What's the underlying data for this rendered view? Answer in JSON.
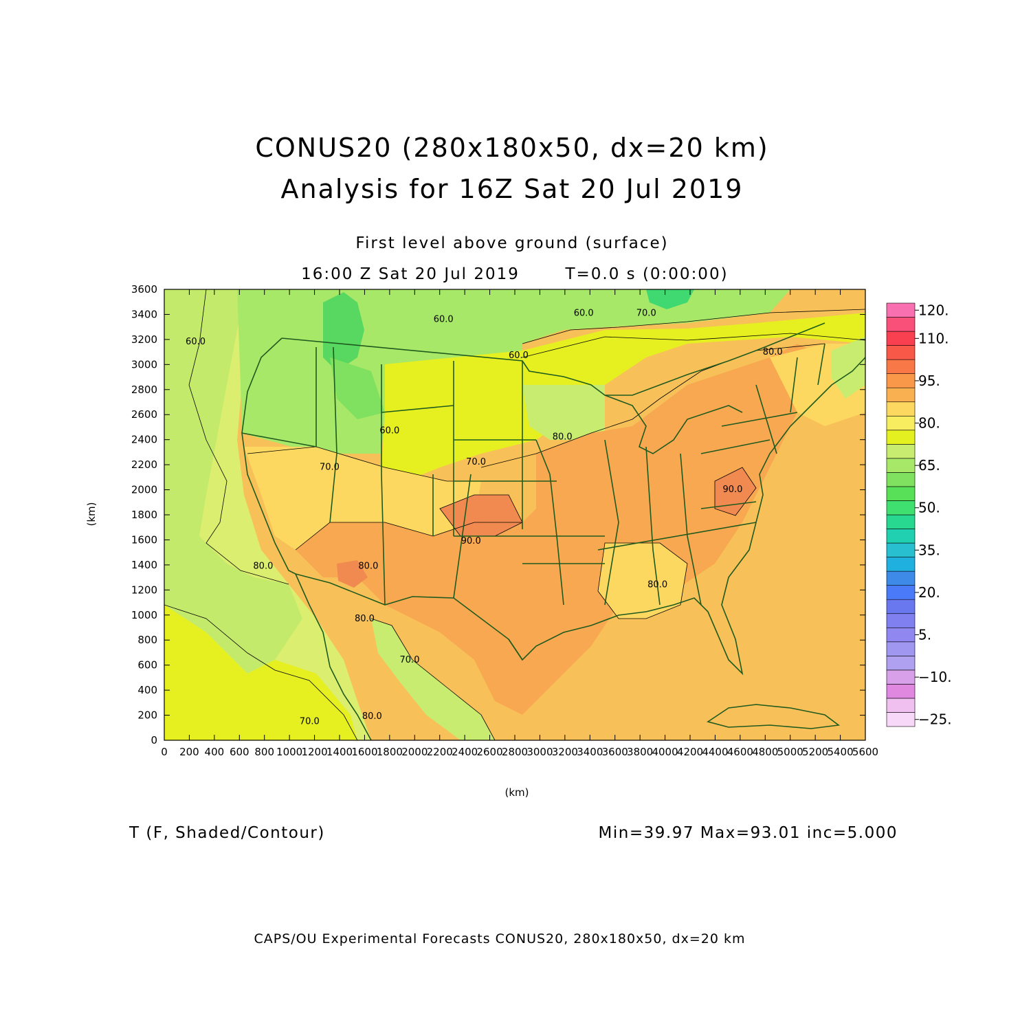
{
  "title": "CONUS20 (280x180x50, dx=20 km)",
  "subtitle": "Analysis for 16Z Sat 20 Jul 2019",
  "level_label": "First level above ground (surface)",
  "time_label": "16:00 Z Sat 20 Jul 2019",
  "valid_label": "T=0.0 s (0:00:00)",
  "field_label": "T (F, Shaded/Contour)",
  "stats_label": "Min=39.97  Max=93.01  inc=5.000",
  "credit_label": "CAPS/OU Experimental Forecasts  CONUS20, 280x180x50, dx=20 km",
  "chart_data": {
    "type": "heatmap",
    "title": "CONUS20 (280x180x50, dx=20 km)",
    "subtitle": "Analysis for 16Z Sat 20 Jul 2019",
    "xlabel": "(km)",
    "ylabel": "(km)",
    "xlim": [
      0,
      5600
    ],
    "ylim": [
      0,
      3600
    ],
    "x_ticks": [
      "0",
      "200",
      "400",
      "600",
      "800",
      "1000",
      "1200",
      "1400",
      "1600",
      "1800",
      "2000",
      "2200",
      "2400",
      "2600",
      "2800",
      "3000",
      "3200",
      "3400",
      "3600",
      "3800",
      "4000",
      "4200",
      "4400",
      "4600",
      "4800",
      "5000",
      "5200",
      "5400",
      "5600"
    ],
    "y_ticks": [
      "0",
      "200",
      "400",
      "600",
      "800",
      "1000",
      "1200",
      "1400",
      "1600",
      "1800",
      "2000",
      "2200",
      "2400",
      "2600",
      "2800",
      "3000",
      "3200",
      "3400",
      "3600"
    ],
    "field": "T (F, Shaded/Contour)",
    "min": 39.97,
    "max": 93.01,
    "inc": 5.0,
    "colorbar": {
      "levels": [
        -25,
        -20,
        -15,
        -10,
        -5,
        0,
        5,
        10,
        15,
        20,
        25,
        30,
        35,
        40,
        45,
        50,
        55,
        60,
        65,
        70,
        75,
        80,
        85,
        90,
        95,
        100,
        105,
        110,
        115,
        120
      ],
      "labels": [
        "120.",
        "110.",
        "95.",
        "80.",
        "65.",
        "50.",
        "35.",
        "20.",
        "5.",
        "−10.",
        "−25."
      ],
      "label_values": [
        120,
        110,
        95,
        80,
        65,
        50,
        35,
        20,
        5,
        -10,
        -25
      ],
      "colors": [
        "#f8d8f8",
        "#f0c0f0",
        "#e088e0",
        "#d8a0e8",
        "#b0a0f0",
        "#a098f0",
        "#9088f0",
        "#8080f0",
        "#6a78f0",
        "#4a7af8",
        "#3d8ae8",
        "#20b0e0",
        "#28c0d0",
        "#20d0b0",
        "#28d890",
        "#40e070",
        "#58e058",
        "#80e060",
        "#a8e868",
        "#c8ec70",
        "#e4f020",
        "#f8ec60",
        "#fcd860",
        "#f8b050",
        "#f89848",
        "#f87848",
        "#f85848",
        "#f84050",
        "#f85078",
        "#f870b0"
      ]
    },
    "contour_labels": [
      {
        "text": "60.0",
        "x": 250,
        "y": 3160
      },
      {
        "text": "60.0",
        "x": 2230,
        "y": 3340
      },
      {
        "text": "60.0",
        "x": 3350,
        "y": 3390
      },
      {
        "text": "70.0",
        "x": 3850,
        "y": 3390
      },
      {
        "text": "80.0",
        "x": 4860,
        "y": 3080
      },
      {
        "text": "60.0",
        "x": 2830,
        "y": 3050
      },
      {
        "text": "60.0",
        "x": 1800,
        "y": 2450
      },
      {
        "text": "70.0",
        "x": 1320,
        "y": 2160
      },
      {
        "text": "70.0",
        "x": 2490,
        "y": 2200
      },
      {
        "text": "80.0",
        "x": 3180,
        "y": 2400
      },
      {
        "text": "90.0",
        "x": 4540,
        "y": 1980
      },
      {
        "text": "90.0",
        "x": 2450,
        "y": 1570
      },
      {
        "text": "80.0",
        "x": 1630,
        "y": 1370
      },
      {
        "text": "80.0",
        "x": 790,
        "y": 1370
      },
      {
        "text": "80.0",
        "x": 3940,
        "y": 1220
      },
      {
        "text": "80.0",
        "x": 1600,
        "y": 950
      },
      {
        "text": "70.0",
        "x": 1960,
        "y": 620
      },
      {
        "text": "70.0",
        "x": 1160,
        "y": 130
      },
      {
        "text": "80.0",
        "x": 1660,
        "y": 170
      }
    ]
  }
}
